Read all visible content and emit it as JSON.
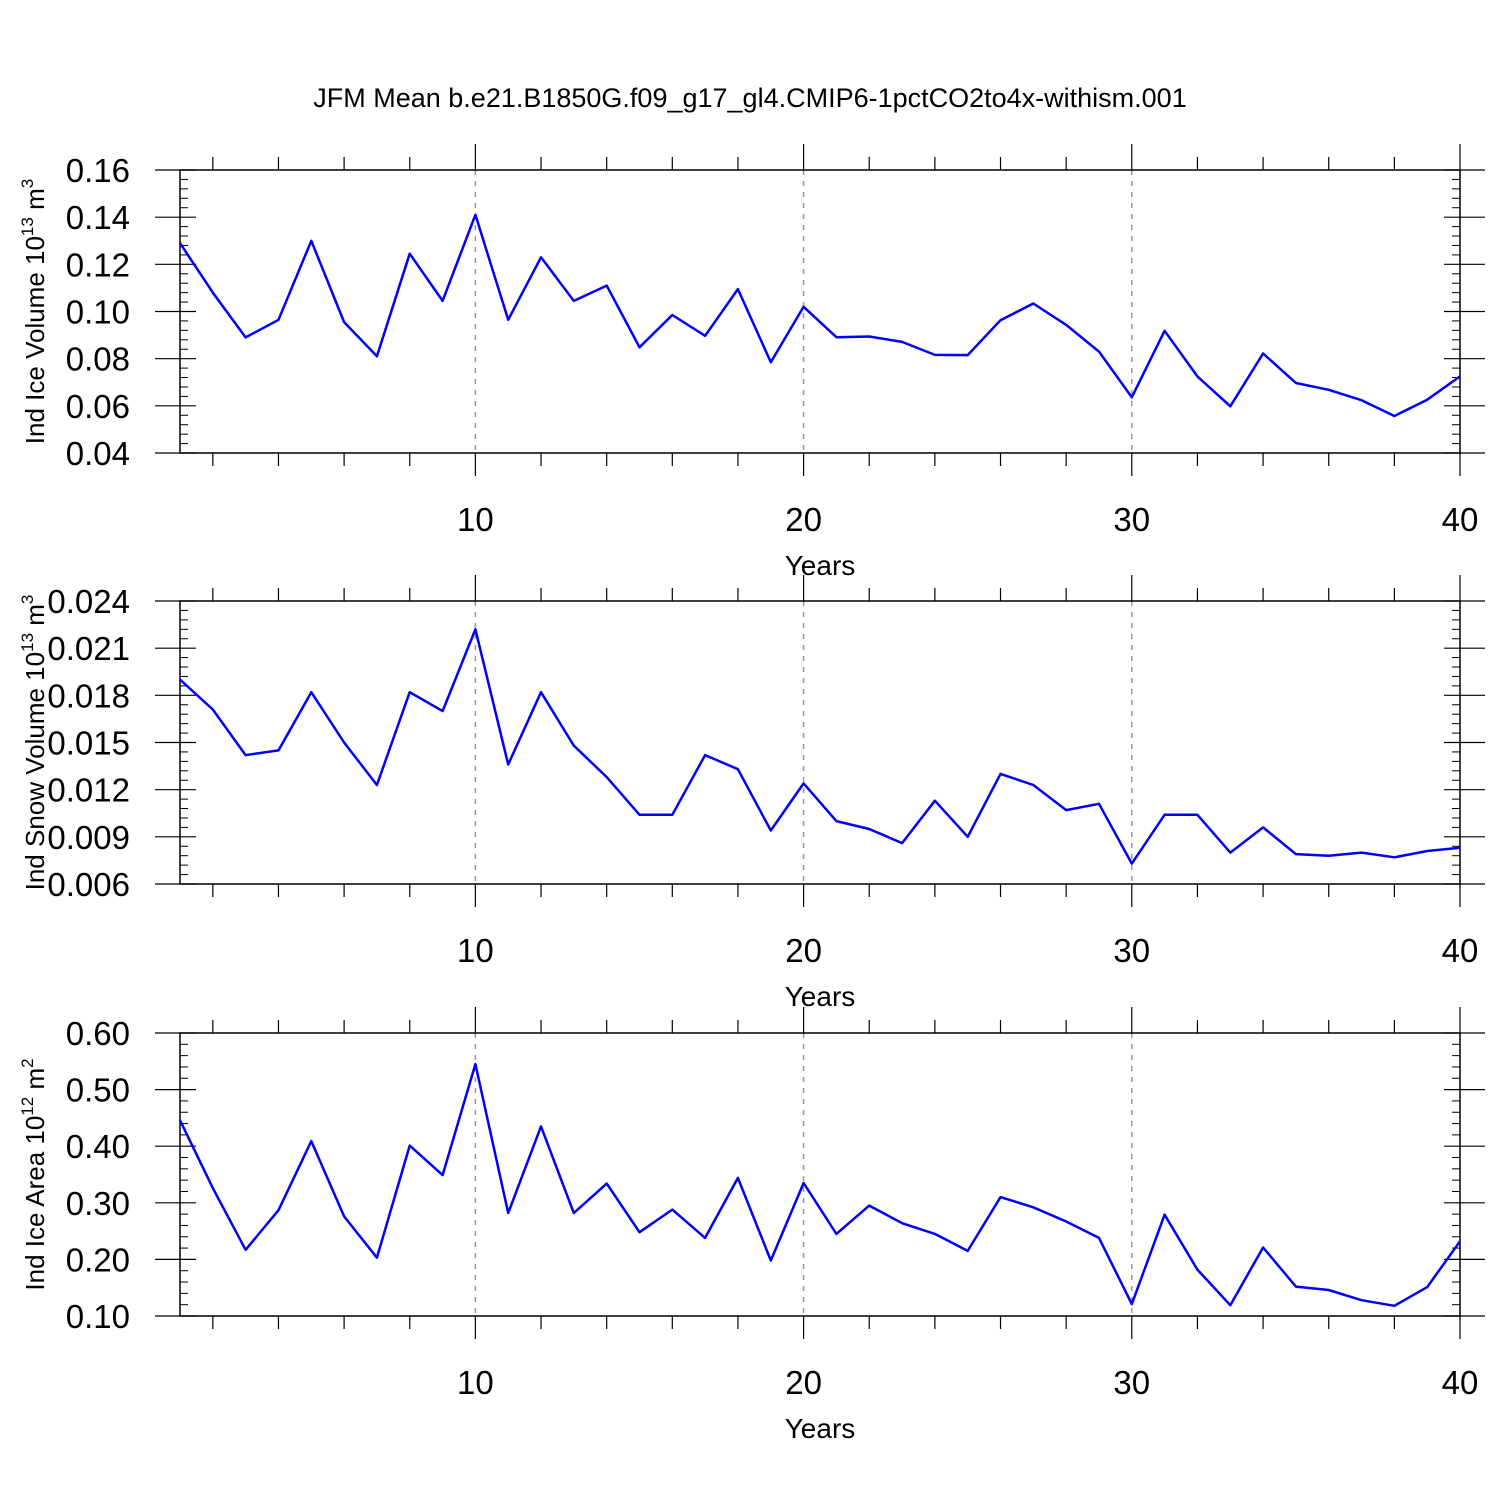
{
  "title": "JFM Mean b.e21.B1850G.f09_g17_gl4.CMIP6-1pctCO2to4x-withism.001",
  "chart_data": [
    {
      "type": "line",
      "ylabel": "Ind Ice Volume 10",
      "ylabel_exp": "13",
      "ylabel_unit": " m",
      "ylabel_unit_exp": "3",
      "xlabel": "Years",
      "xlim": [
        1,
        40
      ],
      "ylim": [
        0.04,
        0.16
      ],
      "yticks": [
        0.04,
        0.06,
        0.08,
        0.1,
        0.12,
        0.14,
        0.16
      ],
      "ytick_labels": [
        "0.04",
        "0.06",
        "0.08",
        "0.10",
        "0.12",
        "0.14",
        "0.16"
      ],
      "xticks": [
        10,
        20,
        30,
        40
      ],
      "xtick_labels": [
        "10",
        "20",
        "30",
        "40"
      ],
      "grid_x": [
        10,
        20,
        30
      ],
      "line_color": "#0000ff",
      "x": [
        1,
        2,
        3,
        4,
        5,
        6,
        7,
        8,
        9,
        10,
        11,
        12,
        13,
        14,
        15,
        16,
        17,
        18,
        19,
        20,
        21,
        22,
        23,
        24,
        25,
        26,
        27,
        28,
        29,
        30,
        31,
        32,
        33,
        34,
        35,
        36,
        37,
        38,
        39,
        40
      ],
      "values": [
        0.129,
        0.108,
        0.089,
        0.0965,
        0.13,
        0.0955,
        0.081,
        0.1245,
        0.1045,
        0.141,
        0.0965,
        0.123,
        0.1045,
        0.111,
        0.0848,
        0.0985,
        0.0897,
        0.1095,
        0.0785,
        0.102,
        0.0891,
        0.0894,
        0.0871,
        0.0816,
        0.0815,
        0.0963,
        0.1034,
        0.0943,
        0.083,
        0.0636,
        0.0918,
        0.0725,
        0.0598,
        0.0822,
        0.0697,
        0.0668,
        0.0624,
        0.0557,
        0.0626,
        0.0725
      ]
    },
    {
      "type": "line",
      "ylabel": "Ind Snow Volume 10",
      "ylabel_exp": "13",
      "ylabel_unit": " m",
      "ylabel_unit_exp": "3",
      "xlabel": "Years",
      "xlim": [
        1,
        40
      ],
      "ylim": [
        0.006,
        0.024
      ],
      "yticks": [
        0.006,
        0.009,
        0.012,
        0.015,
        0.018,
        0.021,
        0.024
      ],
      "ytick_labels": [
        "0.006",
        "0.009",
        "0.012",
        "0.015",
        "0.018",
        "0.021",
        "0.024"
      ],
      "xticks": [
        10,
        20,
        30,
        40
      ],
      "xtick_labels": [
        "10",
        "20",
        "30",
        "40"
      ],
      "grid_x": [
        10,
        20,
        30
      ],
      "line_color": "#0000ff",
      "x": [
        1,
        2,
        3,
        4,
        5,
        6,
        7,
        8,
        9,
        10,
        11,
        12,
        13,
        14,
        15,
        16,
        17,
        18,
        19,
        20,
        21,
        22,
        23,
        24,
        25,
        26,
        27,
        28,
        29,
        30,
        31,
        32,
        33,
        34,
        35,
        36,
        37,
        38,
        39,
        40
      ],
      "values": [
        0.019,
        0.0171,
        0.0142,
        0.0145,
        0.0182,
        0.015,
        0.0123,
        0.0182,
        0.017,
        0.0222,
        0.0136,
        0.0182,
        0.0148,
        0.0128,
        0.0104,
        0.0104,
        0.0142,
        0.0133,
        0.0094,
        0.0124,
        0.01,
        0.0095,
        0.0086,
        0.0113,
        0.009,
        0.013,
        0.0123,
        0.0107,
        0.0111,
        0.0073,
        0.0104,
        0.0104,
        0.008,
        0.0096,
        0.0079,
        0.0078,
        0.008,
        0.0077,
        0.0081,
        0.0083
      ]
    },
    {
      "type": "line",
      "ylabel": "Ind Ice Area 10",
      "ylabel_exp": "12",
      "ylabel_unit": " m",
      "ylabel_unit_exp": "2",
      "xlabel": "Years",
      "xlim": [
        1,
        40
      ],
      "ylim": [
        0.1,
        0.6
      ],
      "yticks": [
        0.1,
        0.2,
        0.3,
        0.4,
        0.5,
        0.6
      ],
      "ytick_labels": [
        "0.10",
        "0.20",
        "0.30",
        "0.40",
        "0.50",
        "0.60"
      ],
      "xticks": [
        10,
        20,
        30,
        40
      ],
      "xtick_labels": [
        "10",
        "20",
        "30",
        "40"
      ],
      "grid_x": [
        10,
        20,
        30
      ],
      "line_color": "#0000ff",
      "x": [
        1,
        2,
        3,
        4,
        5,
        6,
        7,
        8,
        9,
        10,
        11,
        12,
        13,
        14,
        15,
        16,
        17,
        18,
        19,
        20,
        21,
        22,
        23,
        24,
        25,
        26,
        27,
        28,
        29,
        30,
        31,
        32,
        33,
        34,
        35,
        36,
        37,
        38,
        39,
        40
      ],
      "values": [
        0.446,
        0.326,
        0.217,
        0.287,
        0.409,
        0.276,
        0.203,
        0.401,
        0.349,
        0.545,
        0.282,
        0.435,
        0.282,
        0.334,
        0.248,
        0.288,
        0.238,
        0.344,
        0.198,
        0.335,
        0.245,
        0.295,
        0.264,
        0.245,
        0.215,
        0.31,
        0.292,
        0.267,
        0.238,
        0.121,
        0.279,
        0.182,
        0.119,
        0.221,
        0.152,
        0.146,
        0.128,
        0.118,
        0.151,
        0.232
      ]
    }
  ]
}
